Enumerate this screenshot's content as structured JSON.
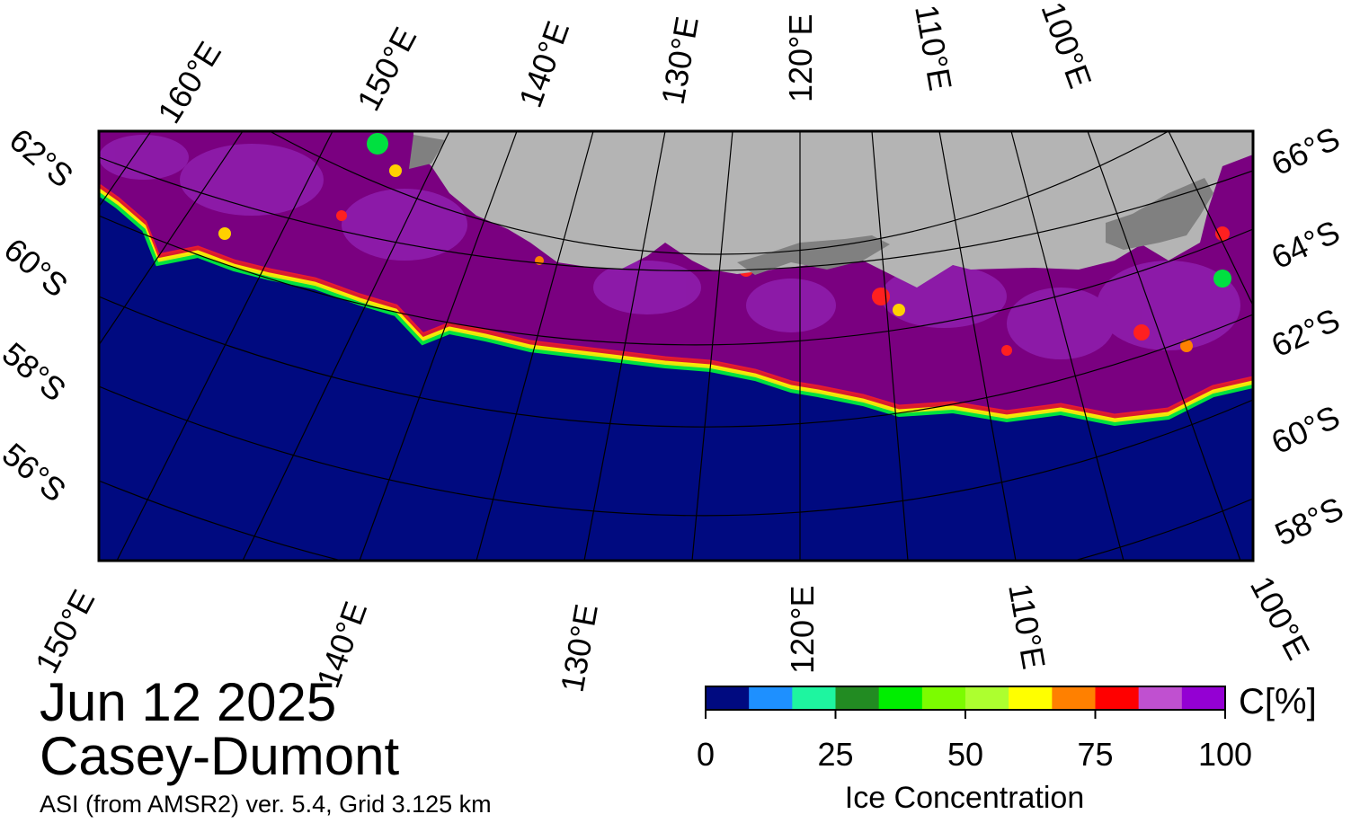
{
  "title": {
    "date": "Jun 12 2025",
    "region": "Casey-Dumont",
    "product": "ASI (from AMSR2) ver. 5.4,  Grid 3.125 km"
  },
  "map": {
    "top_lon_labels": [
      "160°E",
      "150°E",
      "140°E",
      "130°E",
      "120°E",
      "110°E",
      "100°E"
    ],
    "bottom_lon_labels": [
      "150°E",
      "140°E",
      "130°E",
      "120°E",
      "110°E",
      "100°E"
    ],
    "left_lat_labels": [
      "62°S",
      "60°S",
      "58°S",
      "56°S"
    ],
    "right_lat_labels": [
      "66°S",
      "64°S",
      "62°S",
      "60°S",
      "58°S"
    ],
    "colors": {
      "ocean": "#000a80",
      "land": "#b4b4b4",
      "ice_shelf": "#808080",
      "pack_ice": "#7a0080"
    }
  },
  "colorbar": {
    "label": "Ice Concentration",
    "unit": "C[%]",
    "tick_labels": [
      "0",
      "25",
      "50",
      "75",
      "100"
    ],
    "colors": [
      "#000a80",
      "#1e90ff",
      "#1ef5a0",
      "#228b22",
      "#00ee00",
      "#7cfc00",
      "#adff2f",
      "#ffff00",
      "#ff8000",
      "#ff0000",
      "#c050d0",
      "#9400d3"
    ]
  }
}
